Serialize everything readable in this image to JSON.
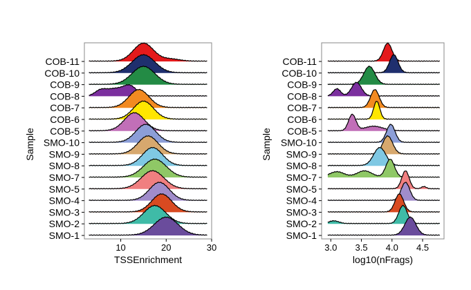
{
  "chart_data": [
    {
      "type": "ridgeline",
      "xlabel": "TSSEnrichment",
      "ylabel": "Sample",
      "xticks": [
        10,
        20,
        30
      ],
      "xlim": [
        2,
        30
      ],
      "categories": [
        "COB-11",
        "COB-10",
        "COB-9",
        "COB-8",
        "COB-7",
        "COB-6",
        "COB-5",
        "SMO-10",
        "SMO-9",
        "SMO-8",
        "SMO-7",
        "SMO-5",
        "SMO-4",
        "SMO-3",
        "SMO-2",
        "SMO-1"
      ],
      "series": [
        {
          "label": "COB-11",
          "color": "#E41A1C",
          "peaks": [
            [
              15,
              2.2,
              1.0
            ],
            [
              21,
              2,
              0.12
            ]
          ]
        },
        {
          "label": "COB-10",
          "color": "#1F2F6E",
          "peaks": [
            [
              15,
              2.5,
              1.0
            ]
          ]
        },
        {
          "label": "COB-9",
          "color": "#238B45",
          "peaks": [
            [
              15,
              2.5,
              1.0
            ]
          ]
        },
        {
          "label": "COB-8",
          "color": "#7B2F9E",
          "peaks": [
            [
              5.5,
              1.2,
              0.28
            ],
            [
              8.5,
              1.8,
              0.38
            ],
            [
              12,
              1.5,
              0.55
            ]
          ]
        },
        {
          "label": "COB-7",
          "color": "#F28A21",
          "peaks": [
            [
              14,
              2.2,
              1.0
            ]
          ]
        },
        {
          "label": "COB-6",
          "color": "#FFE600",
          "peaks": [
            [
              15,
              2.2,
              1.0
            ]
          ]
        },
        {
          "label": "COB-5",
          "color": "#C16FB8",
          "peaks": [
            [
              13,
              2.2,
              1.0
            ]
          ]
        },
        {
          "label": "SMO-10",
          "color": "#8C9ED8",
          "peaks": [
            [
              15.5,
              2.2,
              1.0
            ]
          ]
        },
        {
          "label": "SMO-9",
          "color": "#D7A86E",
          "peaks": [
            [
              16,
              2.2,
              1.0
            ]
          ]
        },
        {
          "label": "SMO-8",
          "color": "#7FC8E3",
          "peaks": [
            [
              17,
              2.2,
              1.0
            ]
          ]
        },
        {
          "label": "SMO-7",
          "color": "#8FC866",
          "peaks": [
            [
              17.5,
              2.5,
              1.0
            ]
          ]
        },
        {
          "label": "SMO-5",
          "color": "#F07F80",
          "peaks": [
            [
              17,
              2.5,
              1.0
            ]
          ]
        },
        {
          "label": "SMO-4",
          "color": "#A08CCB",
          "peaks": [
            [
              18.5,
              2.2,
              1.0
            ]
          ]
        },
        {
          "label": "SMO-3",
          "color": "#D94A21",
          "peaks": [
            [
              19,
              2.2,
              1.0
            ]
          ]
        },
        {
          "label": "SMO-2",
          "color": "#3FBBA7",
          "peaks": [
            [
              17.5,
              2.4,
              1.0
            ]
          ]
        },
        {
          "label": "SMO-1",
          "color": "#6A4C9C",
          "peaks": [
            [
              20,
              2.6,
              1.0
            ]
          ]
        }
      ]
    },
    {
      "type": "ridgeline",
      "xlabel": "log10(nFrags)",
      "ylabel": "Sample",
      "xticks": [
        3.0,
        3.5,
        4.0,
        4.5
      ],
      "xlim": [
        2.85,
        4.85
      ],
      "categories": [
        "COB-11",
        "COB-10",
        "COB-9",
        "COB-8",
        "COB-7",
        "COB-6",
        "COB-5",
        "SMO-10",
        "SMO-9",
        "SMO-8",
        "SMO-7",
        "SMO-5",
        "SMO-4",
        "SMO-3",
        "SMO-2",
        "SMO-1"
      ],
      "series": [
        {
          "label": "COB-11",
          "color": "#E41A1C",
          "peaks": [
            [
              3.93,
              0.07,
              1.0
            ]
          ]
        },
        {
          "label": "COB-10",
          "color": "#1F2F6E",
          "peaks": [
            [
              4.03,
              0.07,
              1.0
            ]
          ]
        },
        {
          "label": "COB-9",
          "color": "#238B45",
          "peaks": [
            [
              3.63,
              0.09,
              1.0
            ]
          ]
        },
        {
          "label": "COB-8",
          "color": "#7B2F9E",
          "peaks": [
            [
              3.1,
              0.06,
              0.4
            ],
            [
              3.42,
              0.08,
              0.75
            ]
          ]
        },
        {
          "label": "COB-7",
          "color": "#F28A21",
          "peaks": [
            [
              3.72,
              0.07,
              1.0
            ]
          ]
        },
        {
          "label": "COB-6",
          "color": "#FFE600",
          "peaks": [
            [
              3.75,
              0.05,
              1.0
            ]
          ]
        },
        {
          "label": "COB-5",
          "color": "#C16FB8",
          "peaks": [
            [
              3.35,
              0.06,
              0.9
            ],
            [
              3.7,
              0.15,
              0.25
            ]
          ]
        },
        {
          "label": "SMO-10",
          "color": "#8C9ED8",
          "peaks": [
            [
              3.98,
              0.07,
              1.0
            ]
          ]
        },
        {
          "label": "SMO-9",
          "color": "#D7A86E",
          "peaks": [
            [
              3.93,
              0.08,
              1.0
            ]
          ]
        },
        {
          "label": "SMO-8",
          "color": "#7FC8E3",
          "peaks": [
            [
              3.8,
              0.1,
              1.0
            ]
          ]
        },
        {
          "label": "SMO-7",
          "color": "#8FC866",
          "peaks": [
            [
              3.1,
              0.12,
              0.3
            ],
            [
              3.55,
              0.12,
              0.35
            ],
            [
              3.97,
              0.07,
              1.0
            ]
          ]
        },
        {
          "label": "SMO-5",
          "color": "#F07F80",
          "peaks": [
            [
              4.22,
              0.06,
              1.0
            ],
            [
              4.52,
              0.04,
              0.12
            ]
          ]
        },
        {
          "label": "SMO-4",
          "color": "#A08CCB",
          "peaks": [
            [
              4.22,
              0.07,
              1.0
            ]
          ]
        },
        {
          "label": "SMO-3",
          "color": "#D94A21",
          "peaks": [
            [
              4.12,
              0.07,
              1.0
            ]
          ]
        },
        {
          "label": "SMO-2",
          "color": "#3FBBA7",
          "peaks": [
            [
              4.18,
              0.07,
              1.0
            ],
            [
              3.05,
              0.08,
              0.15
            ]
          ]
        },
        {
          "label": "SMO-1",
          "color": "#6A4C9C",
          "peaks": [
            [
              4.3,
              0.09,
              1.0
            ]
          ]
        }
      ]
    }
  ]
}
